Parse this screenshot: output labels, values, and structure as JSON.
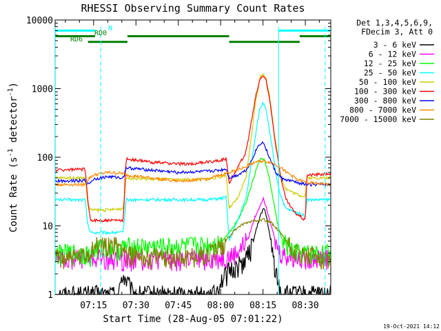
{
  "chart_data": {
    "type": "line",
    "title": "RHESSI Observing Summary Count Rates",
    "xlabel": "Start Time (28-Aug-05 07:01:22)",
    "ylabel": "Count Rate (s",
    "ylabel_sup": "-1",
    "ylabel_rest": " detector",
    "ylabel_sup2": "-1",
    "ylabel_close": ")",
    "x_unit": "minutes since 07:00",
    "xlim": [
      1.37,
      99
    ],
    "xticks": [
      {
        "v": 15,
        "label": "07:15"
      },
      {
        "v": 30,
        "label": "07:30"
      },
      {
        "v": 45,
        "label": "07:45"
      },
      {
        "v": 60,
        "label": "08:00"
      },
      {
        "v": 75,
        "label": "08:15"
      },
      {
        "v": 90,
        "label": "08:30"
      }
    ],
    "yscale": "log",
    "ylim": [
      1,
      10000
    ],
    "yticks": [
      {
        "v": 1,
        "label": "1"
      },
      {
        "v": 10,
        "label": "10"
      },
      {
        "v": 100,
        "label": "100"
      },
      {
        "v": 1000,
        "label": "1000"
      },
      {
        "v": 10000,
        "label": "10000"
      }
    ],
    "legend_placement": "right",
    "legend_header": [
      "Det 1,3,4,5,6,9,",
      "FDecim 3, Att 0"
    ],
    "timestamp": "19-Oct-2021 14:12",
    "series": [
      {
        "name": "3 - 6 keV",
        "color": "#000000",
        "points": [
          [
            1.4,
            1
          ],
          [
            24,
            1
          ],
          [
            25,
            2
          ],
          [
            27,
            1.5
          ],
          [
            29,
            1
          ],
          [
            58,
            1
          ],
          [
            60,
            1.6
          ],
          [
            63,
            2.2
          ],
          [
            66,
            2.6
          ],
          [
            69,
            3.3
          ],
          [
            71,
            5
          ],
          [
            73,
            10
          ],
          [
            74.5,
            16
          ],
          [
            75.5,
            18
          ],
          [
            76.5,
            12
          ],
          [
            78,
            5
          ],
          [
            79.5,
            2.2
          ],
          [
            80.5,
            1.4
          ],
          [
            82,
            1
          ],
          [
            99,
            1
          ]
        ]
      },
      {
        "name": "6 - 12 keV",
        "color": "#ff00ff",
        "points": [
          [
            1.4,
            3.5
          ],
          [
            24,
            3.3
          ],
          [
            26,
            3.3
          ],
          [
            40,
            3.3
          ],
          [
            55,
            3.3
          ],
          [
            60,
            3.4
          ],
          [
            64,
            3.6
          ],
          [
            67,
            4.5
          ],
          [
            70,
            7
          ],
          [
            72,
            13
          ],
          [
            74,
            20
          ],
          [
            75,
            25
          ],
          [
            76,
            20
          ],
          [
            78,
            10
          ],
          [
            79.5,
            5.5
          ],
          [
            81,
            4
          ],
          [
            84,
            3.5
          ],
          [
            99,
            3.5
          ]
        ]
      },
      {
        "name": "12 - 25 keV",
        "color": "#00ff00",
        "points": [
          [
            1.4,
            4
          ],
          [
            13,
            4
          ],
          [
            13.5,
            3.5
          ],
          [
            15,
            4.5
          ],
          [
            19,
            5
          ],
          [
            25,
            4.5
          ],
          [
            25.5,
            5
          ],
          [
            30,
            5
          ],
          [
            40,
            5
          ],
          [
            55,
            5.3
          ],
          [
            60,
            5.8
          ],
          [
            63,
            8
          ],
          [
            66,
            12
          ],
          [
            69,
            22
          ],
          [
            71,
            40
          ],
          [
            73,
            75
          ],
          [
            74.5,
            100
          ],
          [
            75.5,
            90
          ],
          [
            77,
            55
          ],
          [
            79,
            20
          ],
          [
            80.5,
            9
          ],
          [
            82,
            6
          ],
          [
            85,
            4.5
          ],
          [
            88,
            4
          ],
          [
            99,
            4
          ]
        ]
      },
      {
        "name": "25 - 50 keV",
        "color": "#00ffff",
        "points": [
          [
            1.4,
            24
          ],
          [
            12,
            24
          ],
          [
            13,
            10
          ],
          [
            14,
            8
          ],
          [
            20,
            8
          ],
          [
            25.5,
            8
          ],
          [
            26.5,
            24
          ],
          [
            35,
            24
          ],
          [
            45,
            24
          ],
          [
            55,
            24
          ],
          [
            60,
            25
          ],
          [
            62,
            26
          ],
          [
            63,
            6
          ],
          [
            66,
            12
          ],
          [
            69,
            25
          ],
          [
            71,
            90
          ],
          [
            73,
            320
          ],
          [
            74,
            520
          ],
          [
            75,
            620
          ],
          [
            76,
            500
          ],
          [
            77.5,
            220
          ],
          [
            79.5,
            60
          ],
          [
            81,
            30
          ],
          [
            83,
            18
          ],
          [
            86,
            16
          ],
          [
            88,
            15
          ],
          [
            90,
            14
          ],
          [
            90.5,
            24
          ],
          [
            99,
            24
          ]
        ]
      },
      {
        "name": "50 - 100 keV",
        "color": "#cccc00",
        "points": [
          [
            1.4,
            50
          ],
          [
            12,
            50
          ],
          [
            13,
            20
          ],
          [
            14,
            17
          ],
          [
            20,
            17
          ],
          [
            25.5,
            18
          ],
          [
            26.5,
            50
          ],
          [
            35,
            48
          ],
          [
            45,
            47
          ],
          [
            55,
            48
          ],
          [
            60,
            52
          ],
          [
            62,
            56
          ],
          [
            63,
            18
          ],
          [
            66,
            25
          ],
          [
            69,
            50
          ],
          [
            71,
            220
          ],
          [
            72.5,
            700
          ],
          [
            74,
            1450
          ],
          [
            75,
            1700
          ],
          [
            76,
            1450
          ],
          [
            77.5,
            700
          ],
          [
            79.5,
            160
          ],
          [
            81,
            60
          ],
          [
            83,
            35
          ],
          [
            86,
            30
          ],
          [
            88,
            28
          ],
          [
            90,
            27
          ],
          [
            90.5,
            50
          ],
          [
            99,
            50
          ]
        ]
      },
      {
        "name": "100 - 300 keV",
        "color": "#ff0000",
        "points": [
          [
            1.4,
            65
          ],
          [
            12,
            67
          ],
          [
            13,
            22
          ],
          [
            14,
            12
          ],
          [
            20,
            12
          ],
          [
            25.5,
            12
          ],
          [
            26.5,
            95
          ],
          [
            35,
            85
          ],
          [
            45,
            80
          ],
          [
            50,
            80
          ],
          [
            55,
            85
          ],
          [
            60,
            90
          ],
          [
            62,
            96
          ],
          [
            63,
            42
          ],
          [
            66,
            70
          ],
          [
            69,
            120
          ],
          [
            71,
            350
          ],
          [
            72.5,
            800
          ],
          [
            74,
            1400
          ],
          [
            75,
            1550
          ],
          [
            76,
            1350
          ],
          [
            77.5,
            650
          ],
          [
            79.5,
            150
          ],
          [
            81,
            60
          ],
          [
            83,
            25
          ],
          [
            86,
            16
          ],
          [
            88,
            14
          ],
          [
            90,
            12
          ],
          [
            90.5,
            55
          ],
          [
            99,
            58
          ]
        ]
      },
      {
        "name": "300 - 800 keV",
        "color": "#0000ff",
        "points": [
          [
            1.4,
            45
          ],
          [
            12,
            46
          ],
          [
            13,
            40
          ],
          [
            15,
            48
          ],
          [
            20,
            52
          ],
          [
            25.5,
            50
          ],
          [
            26.5,
            70
          ],
          [
            35,
            65
          ],
          [
            45,
            60
          ],
          [
            55,
            62
          ],
          [
            60,
            65
          ],
          [
            62,
            68
          ],
          [
            63,
            50
          ],
          [
            66,
            55
          ],
          [
            69,
            65
          ],
          [
            71,
            90
          ],
          [
            73,
            140
          ],
          [
            74.5,
            165
          ],
          [
            75.5,
            155
          ],
          [
            77,
            105
          ],
          [
            79.5,
            60
          ],
          [
            82,
            48
          ],
          [
            85,
            45
          ],
          [
            88,
            42
          ],
          [
            90,
            40
          ],
          [
            99,
            40
          ]
        ]
      },
      {
        "name": "800 - 7000 keV",
        "color": "#ff8800",
        "points": [
          [
            1.4,
            40
          ],
          [
            12,
            40
          ],
          [
            13,
            48
          ],
          [
            15,
            55
          ],
          [
            20,
            60
          ],
          [
            25.5,
            58
          ],
          [
            26.5,
            55
          ],
          [
            35,
            50
          ],
          [
            45,
            45
          ],
          [
            55,
            48
          ],
          [
            60,
            55
          ],
          [
            64,
            62
          ],
          [
            68,
            70
          ],
          [
            72,
            85
          ],
          [
            75,
            88
          ],
          [
            78,
            84
          ],
          [
            81,
            72
          ],
          [
            84,
            58
          ],
          [
            87,
            48
          ],
          [
            90,
            43
          ],
          [
            99,
            40
          ]
        ]
      },
      {
        "name": "7000 - 15000 keV",
        "color": "#808000",
        "points": [
          [
            1.4,
            3.5
          ],
          [
            12,
            3.5
          ],
          [
            15,
            5
          ],
          [
            20,
            5.5
          ],
          [
            25.5,
            5
          ],
          [
            26.5,
            4
          ],
          [
            35,
            3.5
          ],
          [
            45,
            3.6
          ],
          [
            55,
            3.8
          ],
          [
            60,
            5
          ],
          [
            63,
            7
          ],
          [
            66,
            9.5
          ],
          [
            69,
            11
          ],
          [
            72,
            12
          ],
          [
            75,
            12.5
          ],
          [
            78,
            11
          ],
          [
            81,
            8
          ],
          [
            84,
            5.5
          ],
          [
            87,
            4
          ],
          [
            90,
            3.6
          ],
          [
            99,
            3.5
          ]
        ]
      }
    ],
    "annotations": [
      {
        "label": "N",
        "color": "#00ffff"
      },
      {
        "label": "RD0",
        "color": "#008000"
      },
      {
        "label": "RD6",
        "color": "#008000"
      }
    ],
    "status_bars": [
      {
        "name": "night",
        "color": "#00ffff",
        "level": 7000,
        "segments": [
          [
            1.4,
            15.5
          ],
          [
            80.5,
            99
          ]
        ]
      },
      {
        "name": "rd0",
        "color": "#008000",
        "level": 5800,
        "segments": [
          [
            1.4,
            15.5
          ],
          [
            27,
            63
          ],
          [
            88,
            99
          ]
        ]
      },
      {
        "name": "rd6",
        "color": "#008000",
        "level": 4800,
        "segments": [
          [
            13,
            27
          ],
          [
            63,
            88
          ]
        ]
      }
    ],
    "vlines": [
      {
        "x": 1.4,
        "style": "solid",
        "color": "#00ffff"
      },
      {
        "x": 17.5,
        "style": "dashed",
        "color": "#00ffff"
      },
      {
        "x": 80.5,
        "style": "solid",
        "color": "#00ffff"
      },
      {
        "x": 97,
        "style": "dashed",
        "color": "#00ffff"
      }
    ]
  }
}
